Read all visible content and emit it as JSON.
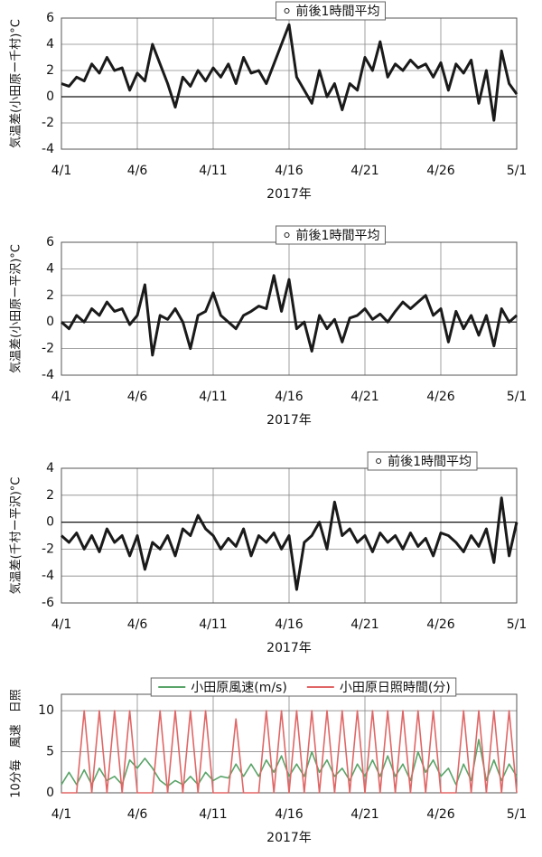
{
  "chart_data": [
    {
      "type": "line",
      "y_label": "気温差(小田原ー千村)°C",
      "x_label": "2017年",
      "legend_position": "top-center",
      "grid": true,
      "x": [
        0,
        0.5,
        1,
        1.5,
        2,
        2.5,
        3,
        3.5,
        4,
        4.5,
        5,
        5.5,
        6,
        6.5,
        7,
        7.5,
        8,
        8.5,
        9,
        9.5,
        10,
        10.5,
        11,
        11.5,
        12,
        12.5,
        13,
        13.5,
        14,
        14.5,
        15,
        15.5,
        16,
        16.5,
        17,
        17.5,
        18,
        18.5,
        19,
        19.5,
        20,
        20.5,
        21,
        21.5,
        22,
        22.5,
        23,
        23.5,
        24,
        24.5,
        25,
        25.5,
        26,
        26.5,
        27,
        27.5,
        28,
        28.5,
        29,
        29.5,
        30
      ],
      "xlim": [
        0,
        30
      ],
      "xticks": [
        {
          "value": 0,
          "label": "4/1"
        },
        {
          "value": 5,
          "label": "4/6"
        },
        {
          "value": 10,
          "label": "4/11"
        },
        {
          "value": 15,
          "label": "4/16"
        },
        {
          "value": 20,
          "label": "4/21"
        },
        {
          "value": 25,
          "label": "4/26"
        },
        {
          "value": 30,
          "label": "5/1"
        }
      ],
      "ylim": [
        -4,
        6
      ],
      "yticks": [
        -4,
        -2,
        0,
        2,
        4,
        6
      ],
      "series": [
        {
          "name": "前後1時間平均",
          "color": "#1a1a1a",
          "values": [
            1,
            0.8,
            1.5,
            1.2,
            2.5,
            1.8,
            3,
            2,
            2.2,
            0.5,
            1.8,
            1.2,
            4,
            2.5,
            1,
            -0.8,
            1.5,
            0.8,
            2,
            1.2,
            2.2,
            1.5,
            2.5,
            1,
            3,
            1.8,
            2,
            1,
            2.5,
            4,
            5.5,
            1.5,
            0.5,
            -0.5,
            2,
            0,
            1,
            -1,
            1,
            0.5,
            3,
            2,
            4.2,
            1.5,
            2.5,
            2,
            2.8,
            2.2,
            2.5,
            1.5,
            2.6,
            0.5,
            2.5,
            1.8,
            2.8,
            -0.5,
            2,
            -1.8,
            3.5,
            1,
            0.2
          ]
        }
      ]
    },
    {
      "type": "line",
      "y_label": "気温差(小田原ー平沢)°C",
      "x_label": "2017年",
      "legend_position": "top-center",
      "grid": true,
      "x": [
        0,
        0.5,
        1,
        1.5,
        2,
        2.5,
        3,
        3.5,
        4,
        4.5,
        5,
        5.5,
        6,
        6.5,
        7,
        7.5,
        8,
        8.5,
        9,
        9.5,
        10,
        10.5,
        11,
        11.5,
        12,
        12.5,
        13,
        13.5,
        14,
        14.5,
        15,
        15.5,
        16,
        16.5,
        17,
        17.5,
        18,
        18.5,
        19,
        19.5,
        20,
        20.5,
        21,
        21.5,
        22,
        22.5,
        23,
        23.5,
        24,
        24.5,
        25,
        25.5,
        26,
        26.5,
        27,
        27.5,
        28,
        28.5,
        29,
        29.5,
        30
      ],
      "xlim": [
        0,
        30
      ],
      "xticks": [
        {
          "value": 0,
          "label": "4/1"
        },
        {
          "value": 5,
          "label": "4/6"
        },
        {
          "value": 10,
          "label": "4/11"
        },
        {
          "value": 15,
          "label": "4/16"
        },
        {
          "value": 20,
          "label": "4/21"
        },
        {
          "value": 25,
          "label": "4/26"
        },
        {
          "value": 30,
          "label": "5/1"
        }
      ],
      "ylim": [
        -4,
        6
      ],
      "yticks": [
        -4,
        -2,
        0,
        2,
        4,
        6
      ],
      "series": [
        {
          "name": "前後1時間平均",
          "color": "#1a1a1a",
          "values": [
            0,
            -0.5,
            0.5,
            0,
            1,
            0.5,
            1.5,
            0.8,
            1,
            -0.2,
            0.5,
            2.8,
            -2.5,
            0.5,
            0.2,
            1,
            0,
            -2,
            0.5,
            0.8,
            2.2,
            0.5,
            0,
            -0.5,
            0.5,
            0.8,
            1.2,
            1,
            3.5,
            0.8,
            3.2,
            -0.5,
            0,
            -2.2,
            0.5,
            -0.5,
            0.2,
            -1.5,
            0.3,
            0.5,
            1,
            0.2,
            0.6,
            0,
            0.8,
            1.5,
            1,
            1.5,
            2,
            0.5,
            1,
            -1.5,
            0.8,
            -0.5,
            0.5,
            -1,
            0.5,
            -1.8,
            1,
            0,
            0.5
          ]
        }
      ]
    },
    {
      "type": "line",
      "y_label": "気温差(千村ー平沢)°C",
      "x_label": "2017年",
      "legend_position": "top-right",
      "grid": true,
      "x": [
        0,
        0.5,
        1,
        1.5,
        2,
        2.5,
        3,
        3.5,
        4,
        4.5,
        5,
        5.5,
        6,
        6.5,
        7,
        7.5,
        8,
        8.5,
        9,
        9.5,
        10,
        10.5,
        11,
        11.5,
        12,
        12.5,
        13,
        13.5,
        14,
        14.5,
        15,
        15.5,
        16,
        16.5,
        17,
        17.5,
        18,
        18.5,
        19,
        19.5,
        20,
        20.5,
        21,
        21.5,
        22,
        22.5,
        23,
        23.5,
        24,
        24.5,
        25,
        25.5,
        26,
        26.5,
        27,
        27.5,
        28,
        28.5,
        29,
        29.5,
        30
      ],
      "xlim": [
        0,
        30
      ],
      "xticks": [
        {
          "value": 0,
          "label": "4/1"
        },
        {
          "value": 5,
          "label": "4/6"
        },
        {
          "value": 10,
          "label": "4/11"
        },
        {
          "value": 15,
          "label": "4/16"
        },
        {
          "value": 20,
          "label": "4/21"
        },
        {
          "value": 25,
          "label": "4/26"
        },
        {
          "value": 30,
          "label": "5/1"
        }
      ],
      "ylim": [
        -6,
        4
      ],
      "yticks": [
        -6,
        -4,
        -2,
        0,
        2,
        4
      ],
      "series": [
        {
          "name": "前後1時間平均",
          "color": "#1a1a1a",
          "values": [
            -1,
            -1.5,
            -0.8,
            -2,
            -1,
            -2.2,
            -0.5,
            -1.5,
            -1,
            -2.5,
            -1,
            -3.5,
            -1.5,
            -2,
            -1,
            -2.5,
            -0.5,
            -1,
            0.5,
            -0.5,
            -1,
            -2,
            -1.2,
            -1.8,
            -0.5,
            -2.5,
            -1,
            -1.5,
            -0.8,
            -2,
            -1,
            -5,
            -1.5,
            -1,
            0,
            -2,
            1.5,
            -1,
            -0.5,
            -1.5,
            -1,
            -2.2,
            -0.8,
            -1.5,
            -1,
            -2,
            -0.8,
            -1.8,
            -1.2,
            -2.5,
            -0.8,
            -1,
            -1.5,
            -2.2,
            -1,
            -1.8,
            -0.5,
            -3,
            1.8,
            -2.5,
            0
          ]
        }
      ]
    },
    {
      "type": "line",
      "y_label": "10分毎　風速　日照",
      "x_label": "2017年",
      "legend_position": "top",
      "grid": true,
      "x": [
        0,
        0.5,
        1,
        1.5,
        2,
        2.5,
        3,
        3.5,
        4,
        4.5,
        5,
        5.5,
        6,
        6.5,
        7,
        7.5,
        8,
        8.5,
        9,
        9.5,
        10,
        10.5,
        11,
        11.5,
        12,
        12.5,
        13,
        13.5,
        14,
        14.5,
        15,
        15.5,
        16,
        16.5,
        17,
        17.5,
        18,
        18.5,
        19,
        19.5,
        20,
        20.5,
        21,
        21.5,
        22,
        22.5,
        23,
        23.5,
        24,
        24.5,
        25,
        25.5,
        26,
        26.5,
        27,
        27.5,
        28,
        28.5,
        29,
        29.5,
        30
      ],
      "xlim": [
        0,
        30
      ],
      "xticks": [
        {
          "value": 0,
          "label": "4/1"
        },
        {
          "value": 5,
          "label": "4/6"
        },
        {
          "value": 10,
          "label": "4/11"
        },
        {
          "value": 15,
          "label": "4/16"
        },
        {
          "value": 20,
          "label": "4/21"
        },
        {
          "value": 25,
          "label": "4/26"
        },
        {
          "value": 30,
          "label": "5/1"
        }
      ],
      "ylim": [
        0,
        12
      ],
      "yticks": [
        0,
        5,
        10
      ],
      "series": [
        {
          "name": "小田原風速(m/s)",
          "color": "#5aa469",
          "values": [
            1,
            2.5,
            1,
            2.8,
            1,
            3,
            1.5,
            2,
            1,
            4,
            3,
            4.2,
            3,
            1.5,
            0.8,
            1.5,
            1,
            2,
            1,
            2.5,
            1.5,
            2,
            1.8,
            3.5,
            2,
            3.5,
            2,
            4,
            2.5,
            4.5,
            2,
            3.5,
            2,
            5,
            2.5,
            4,
            2,
            3,
            1.5,
            3.5,
            2,
            4,
            2,
            4.5,
            2,
            3.5,
            1.5,
            5,
            2.5,
            4,
            2,
            3,
            1,
            3.5,
            1.5,
            6.5,
            1.5,
            4,
            1.5,
            3.5,
            2
          ]
        },
        {
          "name": "小田原日照時間(分)",
          "color": "#e06666",
          "values": [
            0,
            0,
            0,
            10,
            0,
            10,
            0,
            10,
            0,
            10,
            0,
            0,
            0,
            10,
            0,
            10,
            0,
            10,
            0,
            10,
            0,
            0,
            0,
            9,
            0,
            0,
            0,
            10,
            0,
            10,
            0,
            10,
            0,
            10,
            0,
            10,
            0,
            10,
            0,
            10,
            0,
            10,
            0,
            10,
            0,
            10,
            0,
            10,
            0,
            10,
            0,
            0,
            0,
            10,
            0,
            10,
            0,
            10,
            0,
            10,
            0
          ]
        }
      ]
    }
  ]
}
